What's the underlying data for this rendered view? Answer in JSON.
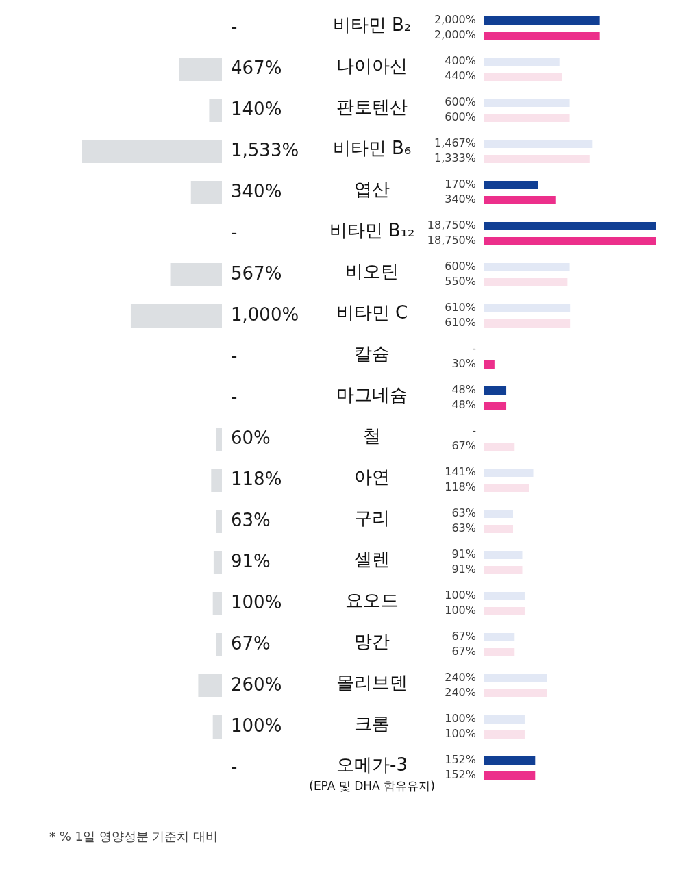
{
  "chart_data": [
    {
      "type": "bar",
      "orientation": "horizontal",
      "categories": [
        "비타민 B₂",
        "나이아신",
        "판토텐산",
        "비타민 B₆",
        "엽산",
        "비타민 B₁₂",
        "비오틴",
        "비타민 C",
        "칼슘",
        "마그네슘",
        "철",
        "아연",
        "구리",
        "셀렌",
        "요오드",
        "망간",
        "몰리브덴",
        "크롬",
        "오메가-3\n(EPA 및 DHA 함유유지)"
      ],
      "values": [
        null,
        467,
        140,
        1533,
        340,
        null,
        567,
        1000,
        null,
        null,
        60,
        118,
        63,
        91,
        100,
        67,
        260,
        100,
        null
      ],
      "value_labels": [
        "-",
        "467%",
        "140%",
        "1,533%",
        "340%",
        "-",
        "567%",
        "1,000%",
        "-",
        "-",
        "60%",
        "118%",
        "63%",
        "91%",
        "100%",
        "67%",
        "260%",
        "100%",
        "-"
      ],
      "color": "#dcdfe2",
      "xlim": [
        1533,
        0
      ],
      "tick_labels": "y",
      "annotations": [
        "* % 1일 영양성분 기준치 대비"
      ]
    },
    {
      "type": "bar",
      "orientation": "horizontal",
      "categories": [
        null,
        null,
        null,
        null,
        null,
        null,
        null,
        null,
        null,
        null,
        null,
        null,
        null,
        null,
        null,
        null,
        null,
        null,
        null
      ],
      "series": [
        {
          "colors": [
            "#113f94",
            "#e2e8f5",
            "#e2e8f5",
            "#e2e8f5",
            "#113f94",
            "#113f94",
            "#e2e8f5",
            "#e2e8f5",
            "#113f94",
            "#113f94",
            "#e2e8f5",
            "#e2e8f5",
            "#e2e8f5",
            "#e2e8f5",
            "#e2e8f5",
            "#e2e8f5",
            "#e2e8f5",
            "#e2e8f5",
            "#113f94"
          ],
          "values": [
            2000,
            400,
            600,
            1467,
            170,
            18750,
            600,
            610,
            null,
            48,
            null,
            141,
            63,
            91,
            100,
            67,
            240,
            100,
            152
          ],
          "value_labels": [
            "2,000%",
            "400%",
            "600%",
            "1,467%",
            "170%",
            "18,750%",
            "600%",
            "610%",
            "-",
            "48%",
            "-",
            "141%",
            "63%",
            "91%",
            "100%",
            "67%",
            "240%",
            "100%",
            "152%"
          ]
        },
        {
          "colors": [
            "#ec2f8b",
            "#f9e1ea",
            "#f9e1ea",
            "#f9e1ea",
            "#ec2f8b",
            "#ec2f8b",
            "#f9e1ea",
            "#f9e1ea",
            "#ec2f8b",
            "#ec2f8b",
            "#f9e1ea",
            "#f9e1ea",
            "#f9e1ea",
            "#f9e1ea",
            "#f9e1ea",
            "#f9e1ea",
            "#f9e1ea",
            "#f9e1ea",
            "#ec2f8b"
          ],
          "values": [
            2000,
            440,
            600,
            1333,
            340,
            18750,
            550,
            610,
            30,
            48,
            67,
            118,
            63,
            91,
            100,
            67,
            240,
            100,
            152
          ],
          "value_labels": [
            "2,000%",
            "440%",
            "600%",
            "1,333%",
            "340%",
            "18,750%",
            "550%",
            "610%",
            "30%",
            "48%",
            "67%",
            "118%",
            "63%",
            "91%",
            "100%",
            "67%",
            "240%",
            "100%",
            "152%"
          ]
        }
      ],
      "xlim": [
        20,
        20000
      ],
      "log": "x",
      "tick_labels": false
    }
  ]
}
